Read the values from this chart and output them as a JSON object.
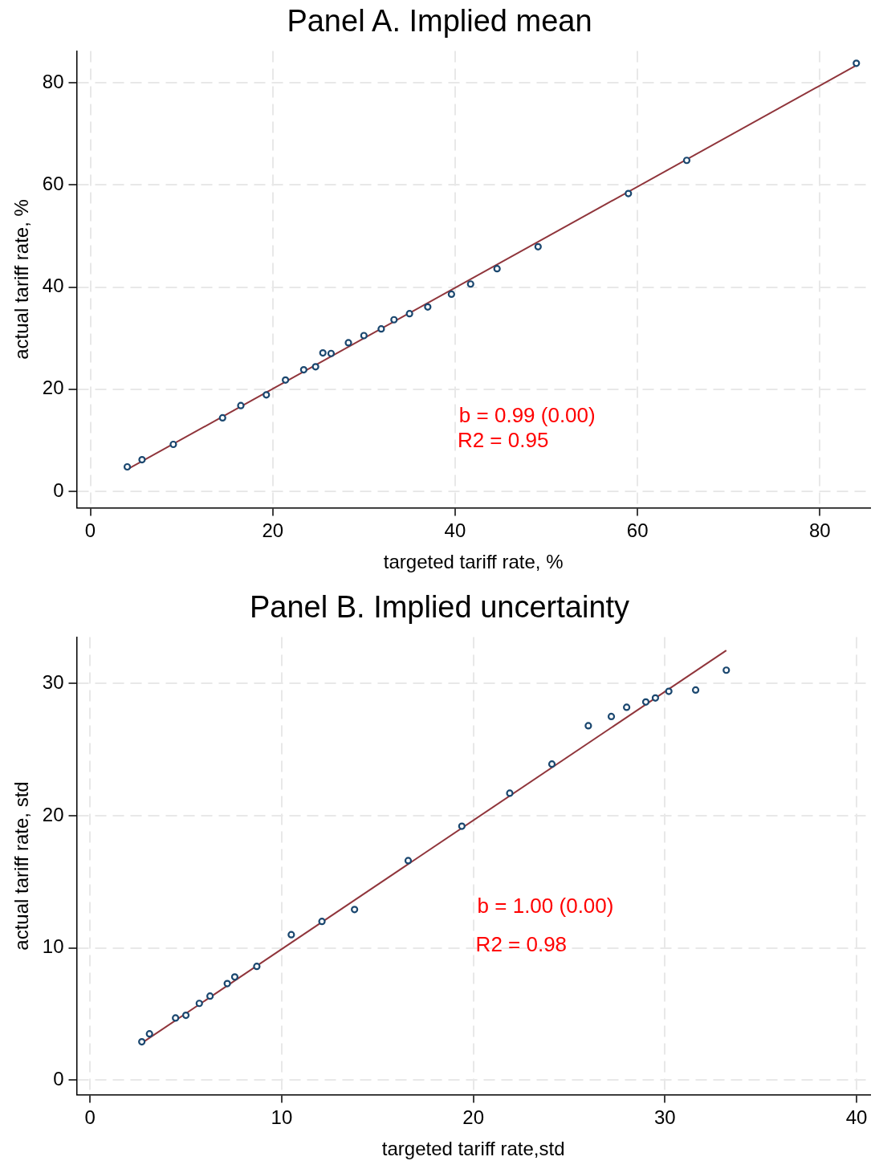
{
  "chart_data": [
    {
      "type": "scatter",
      "title": "Panel A. Implied mean",
      "xlabel": "targeted tariff rate, %",
      "ylabel": "actual tariff rate, %",
      "xlim": [
        -1.5,
        85.5
      ],
      "ylim": [
        -3.2,
        86.2
      ],
      "xticks": [
        0,
        20,
        40,
        60,
        80
      ],
      "yticks": [
        0,
        20,
        40,
        60,
        80
      ],
      "grid": true,
      "legend": false,
      "annotations": [
        "b = 0.99 (0.00)",
        "R2 = 0.95"
      ],
      "series": [
        {
          "marker": "circle",
          "color": "#1a476f",
          "x": [
            4.05,
            5.67,
            9.1,
            14.5,
            16.5,
            19.3,
            21.4,
            23.4,
            24.7,
            25.5,
            26.4,
            28.3,
            30.0,
            31.9,
            33.3,
            35.0,
            37.0,
            39.6,
            41.7,
            44.6,
            49.1,
            59.0,
            65.4,
            84.0
          ],
          "values": [
            4.8,
            6.2,
            9.2,
            14.4,
            16.8,
            18.9,
            21.8,
            23.8,
            24.4,
            27.1,
            27.0,
            29.1,
            30.5,
            31.8,
            33.6,
            34.8,
            36.1,
            38.6,
            40.6,
            43.6,
            47.9,
            58.3,
            64.8,
            83.8
          ]
        },
        {
          "type": "line",
          "marker": "none",
          "color": "#90353b",
          "x": [
            4.05,
            84.0
          ],
          "values": [
            4.3,
            83.4
          ]
        }
      ]
    },
    {
      "type": "scatter",
      "title": "Panel B. Implied uncertainty",
      "xlabel": "targeted tariff rate,std",
      "ylabel": "actual tariff rate, std",
      "xlim": [
        -0.7,
        40.7
      ],
      "ylim": [
        -1.1,
        33.5
      ],
      "xticks": [
        0,
        10,
        20,
        30,
        40
      ],
      "yticks": [
        0,
        10,
        20,
        30
      ],
      "grid": true,
      "legend": false,
      "annotations": [
        "b = 1.00 (0.00)",
        "R2 = 0.98"
      ],
      "series": [
        {
          "marker": "circle",
          "color": "#1a476f",
          "x": [
            2.7,
            3.1,
            4.46,
            5.0,
            5.7,
            6.26,
            7.16,
            7.55,
            8.7,
            10.5,
            12.1,
            13.8,
            16.6,
            19.4,
            21.9,
            24.1,
            26.0,
            27.2,
            28.0,
            29.0,
            29.5,
            30.2,
            31.6,
            33.2
          ],
          "values": [
            2.9,
            3.5,
            4.7,
            4.9,
            5.8,
            6.35,
            7.3,
            7.8,
            8.6,
            11.0,
            12.0,
            12.9,
            16.6,
            19.2,
            21.7,
            23.9,
            26.8,
            27.5,
            28.2,
            28.6,
            28.9,
            29.4,
            29.5,
            31.0
          ]
        },
        {
          "type": "line",
          "marker": "none",
          "color": "#90353b",
          "x": [
            2.7,
            33.2
          ],
          "values": [
            2.8,
            32.5
          ]
        }
      ]
    }
  ]
}
